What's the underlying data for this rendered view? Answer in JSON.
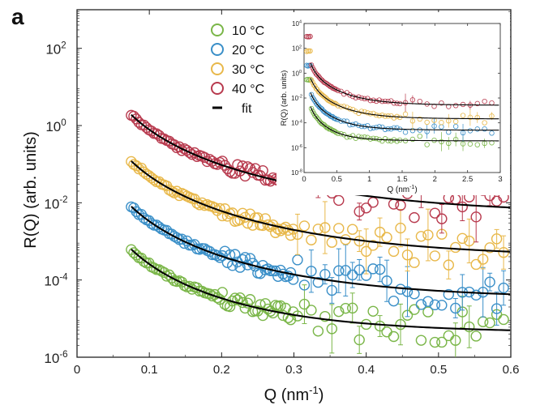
{
  "chart_data": [
    {
      "type": "scatter",
      "panel_label": "a",
      "xlabel": "Q (nm",
      "xlabel_sup": "-1",
      "xlabel_close": ")",
      "ylabel": "R(Q) (arb. units)",
      "xlim": [
        0,
        0.6
      ],
      "yscale": "log",
      "ylim": [
        1e-06,
        1000
      ],
      "x_ticks": [
        0,
        0.1,
        0.2,
        0.3,
        0.4,
        0.5,
        0.6
      ],
      "x_tick_labels": [
        "0",
        "0.1",
        "0.2",
        "0.3",
        "0.4",
        "0.5",
        "0.6"
      ],
      "y_ticks": [
        {
          "value": 1e-06,
          "base": "10",
          "exp": "-6"
        },
        {
          "value": 0.0001,
          "base": "10",
          "exp": "-4"
        },
        {
          "value": 0.01,
          "base": "10",
          "exp": "-2"
        },
        {
          "value": 1,
          "base": "10",
          "exp": "0"
        },
        {
          "value": 100,
          "base": "10",
          "exp": "2"
        }
      ],
      "legend": {
        "placement": "top-center",
        "entries": [
          "10 °C",
          "20 °C",
          "30 °C",
          "40 °C",
          "fit"
        ]
      },
      "series": [
        {
          "name": "10 °C",
          "color": "#7ab648",
          "amplitude": 0.00062,
          "baseline": 4e-06
        },
        {
          "name": "20 °C",
          "color": "#3a8fc8",
          "amplitude": 0.008,
          "baseline": 3e-05
        },
        {
          "name": "30 °C",
          "color": "#e8b84a",
          "amplitude": 0.12,
          "baseline": 0.00035
        },
        {
          "name": "40 °C",
          "color": "#b83a4e",
          "amplitude": 1.9,
          "baseline": 0.0045
        }
      ],
      "fit_color": "#000000",
      "fit_model": "R(Q) = amplitude * (Q/0.075)^-3.1 + baseline",
      "q_range": [
        0.075,
        0.6
      ]
    },
    {
      "type": "scatter",
      "role": "inset",
      "xlabel": "Q (nm",
      "xlabel_sup": "-1",
      "xlabel_close": ")",
      "ylabel": "R(Q) (arb. units)",
      "xlim": [
        0,
        3
      ],
      "yscale": "log",
      "ylim": [
        1e-08,
        10000
      ],
      "x_ticks": [
        0,
        0.5,
        1,
        1.5,
        2,
        2.5,
        3
      ],
      "x_tick_labels": [
        "0",
        "0.5",
        "1",
        "1.5",
        "2",
        "2.5",
        "3"
      ],
      "y_ticks": [
        {
          "value": 1e-08,
          "base": "10",
          "exp": "-8"
        },
        {
          "value": 1e-06,
          "base": "10",
          "exp": "-6"
        },
        {
          "value": 0.0001,
          "base": "10",
          "exp": "-4"
        },
        {
          "value": 0.01,
          "base": "10",
          "exp": "-2"
        },
        {
          "value": 1,
          "base": "10",
          "exp": "0"
        },
        {
          "value": 100,
          "base": "10",
          "exp": "2"
        },
        {
          "value": 10000,
          "base": "10",
          "exp": "4"
        }
      ],
      "series": [
        {
          "name": "10 °C",
          "color": "#7ab648",
          "plateau": 0.3,
          "amplitude": 0.0006,
          "baseline": 3.5e-06
        },
        {
          "name": "20 °C",
          "color": "#3a8fc8",
          "plateau": 4,
          "amplitude": 0.008,
          "baseline": 2.5e-05
        },
        {
          "name": "30 °C",
          "color": "#e8b84a",
          "plateau": 60,
          "amplitude": 0.12,
          "baseline": 0.0002
        },
        {
          "name": "40 °C",
          "color": "#b83a4e",
          "plateau": 900,
          "amplitude": 1.9,
          "baseline": 0.0025
        }
      ]
    }
  ]
}
